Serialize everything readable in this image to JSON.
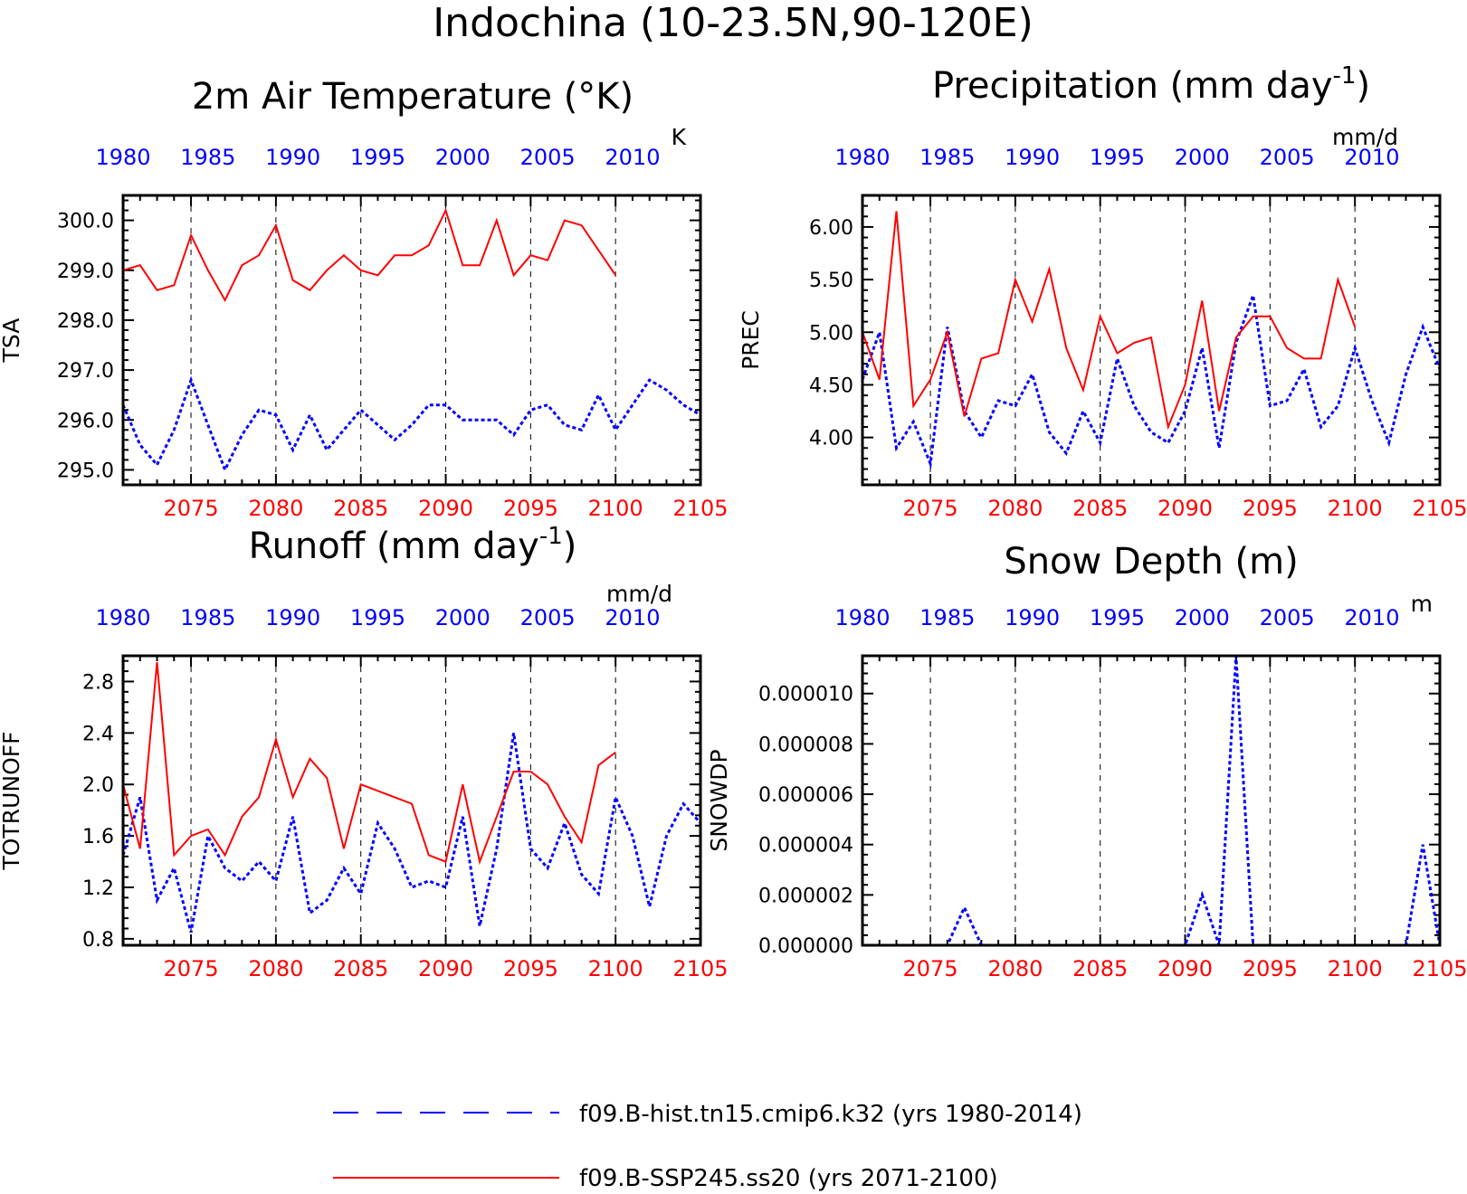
{
  "title": "Indochina (10-23.5N,90-120E)",
  "colors": {
    "hist": "#0000ff",
    "ssp": "#ff0000"
  },
  "legend": {
    "hist": "f09.B-hist.tn15.cmip6.k32 (yrs 1980-2014)",
    "ssp": "f09.B-SSP245.ss20 (yrs 2071-2100)"
  },
  "chart_data": [
    {
      "type": "line",
      "title": "2m Air Temperature (°K)",
      "unit": "K",
      "ylabel": "TSA",
      "yticks": [
        "295.0",
        "296.0",
        "297.0",
        "298.0",
        "299.0",
        "300.0"
      ],
      "ylim": [
        294.7,
        300.5
      ],
      "top_axis": {
        "ticks": [
          "1980",
          "1985",
          "1990",
          "1995",
          "2000",
          "2005",
          "2010"
        ]
      },
      "bottom_axis": {
        "ticks": [
          "2075",
          "2080",
          "2085",
          "2090",
          "2095",
          "2100",
          "2105"
        ]
      },
      "series": [
        {
          "name": "f09.B-hist.tn15.cmip6.k32 (yrs 1980-2014)",
          "style": "dotted",
          "x": [
            1980,
            1981,
            1982,
            1983,
            1984,
            1985,
            1986,
            1987,
            1988,
            1989,
            1990,
            1991,
            1992,
            1993,
            1994,
            1995,
            1996,
            1997,
            1998,
            1999,
            2000,
            2001,
            2002,
            2003,
            2004,
            2005,
            2006,
            2007,
            2008,
            2009,
            2010,
            2011,
            2012,
            2013,
            2014
          ],
          "values": [
            296.3,
            295.5,
            295.1,
            295.8,
            296.8,
            295.9,
            295.0,
            295.7,
            296.2,
            296.1,
            295.4,
            296.1,
            295.4,
            295.8,
            296.2,
            295.9,
            295.6,
            295.9,
            296.3,
            296.3,
            296.0,
            296.0,
            296.0,
            295.7,
            296.2,
            296.3,
            295.9,
            295.8,
            296.5,
            295.8,
            296.3,
            296.8,
            296.6,
            296.3,
            296.1
          ]
        },
        {
          "name": "f09.B-SSP245.ss20 (yrs 2071-2100)",
          "style": "solid",
          "x": [
            2071,
            2072,
            2073,
            2074,
            2075,
            2076,
            2077,
            2078,
            2079,
            2080,
            2081,
            2082,
            2083,
            2084,
            2085,
            2086,
            2087,
            2088,
            2089,
            2090,
            2091,
            2092,
            2093,
            2094,
            2095,
            2096,
            2097,
            2098,
            2099,
            2100
          ],
          "values": [
            299.0,
            299.1,
            298.6,
            298.7,
            299.7,
            299.0,
            298.4,
            299.1,
            299.3,
            299.9,
            298.8,
            298.6,
            299.0,
            299.3,
            299.0,
            298.9,
            299.3,
            299.3,
            299.5,
            300.2,
            299.1,
            299.1,
            300.0,
            298.9,
            299.3,
            299.2,
            300.0,
            299.9,
            299.4,
            298.9
          ]
        }
      ]
    },
    {
      "type": "line",
      "title": "Precipitation (mm day",
      "title_sup": "-1",
      "title_end": ")",
      "unit": "mm/d",
      "ylabel": "PREC",
      "yticks": [
        "4.00",
        "4.50",
        "5.00",
        "5.50",
        "6.00"
      ],
      "ylim": [
        3.55,
        6.3
      ],
      "top_axis": {
        "ticks": [
          "1980",
          "1985",
          "1990",
          "1995",
          "2000",
          "2005",
          "2010"
        ]
      },
      "bottom_axis": {
        "ticks": [
          "2075",
          "2080",
          "2085",
          "2090",
          "2095",
          "2100",
          "2105"
        ]
      },
      "series": [
        {
          "name": "f09.B-hist.tn15.cmip6.k32 (yrs 1980-2014)",
          "style": "dotted",
          "x": [
            1980,
            1981,
            1982,
            1983,
            1984,
            1985,
            1986,
            1987,
            1988,
            1989,
            1990,
            1991,
            1992,
            1993,
            1994,
            1995,
            1996,
            1997,
            1998,
            1999,
            2000,
            2001,
            2002,
            2003,
            2004,
            2005,
            2006,
            2007,
            2008,
            2009,
            2010,
            2011,
            2012,
            2013,
            2014
          ],
          "values": [
            4.55,
            5.0,
            3.9,
            4.15,
            3.75,
            5.05,
            4.25,
            4.0,
            4.35,
            4.3,
            4.6,
            4.05,
            3.85,
            4.25,
            3.95,
            4.75,
            4.3,
            4.05,
            3.95,
            4.25,
            4.85,
            3.9,
            4.9,
            5.35,
            4.3,
            4.35,
            4.65,
            4.1,
            4.3,
            4.85,
            4.35,
            3.95,
            4.6,
            5.05,
            4.65
          ]
        },
        {
          "name": "f09.B-SSP245.ss20 (yrs 2071-2100)",
          "style": "solid",
          "x": [
            2071,
            2072,
            2073,
            2074,
            2075,
            2076,
            2077,
            2078,
            2079,
            2080,
            2081,
            2082,
            2083,
            2084,
            2085,
            2086,
            2087,
            2088,
            2089,
            2090,
            2091,
            2092,
            2093,
            2094,
            2095,
            2096,
            2097,
            2098,
            2099,
            2100
          ],
          "values": [
            5.0,
            4.55,
            6.15,
            4.3,
            4.55,
            5.0,
            4.2,
            4.75,
            4.8,
            5.5,
            5.1,
            5.6,
            4.85,
            4.45,
            5.15,
            4.8,
            4.9,
            4.95,
            4.1,
            4.5,
            5.3,
            4.25,
            4.95,
            5.15,
            5.15,
            4.85,
            4.75,
            4.75,
            5.5,
            5.05
          ]
        }
      ]
    },
    {
      "type": "line",
      "title": "Runoff (mm day",
      "title_sup": "-1",
      "title_end": ")",
      "unit": "mm/d",
      "ylabel": "TOTRUNOFF",
      "yticks": [
        "0.8",
        "1.2",
        "1.6",
        "2.0",
        "2.4",
        "2.8"
      ],
      "ylim": [
        0.75,
        3.0
      ],
      "top_axis": {
        "ticks": [
          "1980",
          "1985",
          "1990",
          "1995",
          "2000",
          "2005",
          "2010"
        ]
      },
      "bottom_axis": {
        "ticks": [
          "2075",
          "2080",
          "2085",
          "2090",
          "2095",
          "2100",
          "2105"
        ]
      },
      "series": [
        {
          "name": "f09.B-hist.tn15.cmip6.k32 (yrs 1980-2014)",
          "style": "dotted",
          "x": [
            1980,
            1981,
            1982,
            1983,
            1984,
            1985,
            1986,
            1987,
            1988,
            1989,
            1990,
            1991,
            1992,
            1993,
            1994,
            1995,
            1996,
            1997,
            1998,
            1999,
            2000,
            2001,
            2002,
            2003,
            2004,
            2005,
            2006,
            2007,
            2008,
            2009,
            2010,
            2011,
            2012,
            2013,
            2014
          ],
          "values": [
            1.45,
            1.9,
            1.1,
            1.35,
            0.85,
            1.6,
            1.35,
            1.25,
            1.4,
            1.25,
            1.75,
            1.0,
            1.1,
            1.35,
            1.15,
            1.7,
            1.5,
            1.2,
            1.25,
            1.2,
            1.75,
            0.9,
            1.5,
            2.4,
            1.5,
            1.35,
            1.7,
            1.3,
            1.15,
            1.9,
            1.6,
            1.05,
            1.6,
            1.85,
            1.7
          ]
        },
        {
          "name": "f09.B-SSP245.ss20 (yrs 2071-2100)",
          "style": "solid",
          "x": [
            2071,
            2072,
            2073,
            2074,
            2075,
            2076,
            2077,
            2078,
            2079,
            2080,
            2081,
            2082,
            2083,
            2084,
            2085,
            2086,
            2087,
            2088,
            2089,
            2090,
            2091,
            2092,
            2093,
            2094,
            2095,
            2096,
            2097,
            2098,
            2099,
            2100
          ],
          "values": [
            2.0,
            1.5,
            2.95,
            1.45,
            1.6,
            1.65,
            1.45,
            1.75,
            1.9,
            2.35,
            1.9,
            2.2,
            2.05,
            1.5,
            2.0,
            1.95,
            1.9,
            1.85,
            1.45,
            1.4,
            2.0,
            1.4,
            1.75,
            2.1,
            2.1,
            2.0,
            1.75,
            1.55,
            2.15,
            2.25
          ]
        }
      ]
    },
    {
      "type": "line",
      "title": "Snow Depth (m)",
      "unit": "m",
      "ylabel": "SNOWDP",
      "yticks": [
        "0.000000",
        "0.000002",
        "0.000004",
        "0.000006",
        "0.000008",
        "0.000010"
      ],
      "ylim": [
        0,
        1.15e-05
      ],
      "top_axis": {
        "ticks": [
          "1980",
          "1985",
          "1990",
          "1995",
          "2000",
          "2005",
          "2010"
        ]
      },
      "bottom_axis": {
        "ticks": [
          "2075",
          "2080",
          "2085",
          "2090",
          "2095",
          "2100",
          "2105"
        ]
      },
      "series": [
        {
          "name": "f09.B-hist.tn15.cmip6.k32 (yrs 1980-2014)",
          "style": "dotted",
          "x": [
            1980,
            1981,
            1982,
            1983,
            1984,
            1985,
            1986,
            1987,
            1988,
            1989,
            1990,
            1991,
            1992,
            1993,
            1994,
            1995,
            1996,
            1997,
            1998,
            1999,
            2000,
            2001,
            2002,
            2003,
            2004,
            2005,
            2006,
            2007,
            2008,
            2009,
            2010,
            2011,
            2012,
            2013,
            2014
          ],
          "values": [
            0,
            0,
            0,
            0,
            0,
            0,
            1.5e-06,
            0,
            0,
            0,
            0,
            0,
            0,
            0,
            0,
            0,
            0,
            0,
            0,
            0,
            2e-06,
            0,
            1.15e-05,
            0,
            0,
            0,
            0,
            0,
            0,
            0,
            0,
            0,
            0,
            4e-06,
            0
          ]
        },
        {
          "name": "f09.B-SSP245.ss20 (yrs 2071-2100)",
          "style": "solid",
          "x": [
            2071,
            2072,
            2073,
            2074,
            2075,
            2076,
            2077,
            2078,
            2079,
            2080,
            2081,
            2082,
            2083,
            2084,
            2085,
            2086,
            2087,
            2088,
            2089,
            2090,
            2091,
            2092,
            2093,
            2094,
            2095,
            2096,
            2097,
            2098,
            2099,
            2100
          ],
          "values": [
            0,
            0,
            0,
            0,
            0,
            0,
            0,
            0,
            0,
            0,
            0,
            0,
            0,
            0,
            0,
            0,
            0,
            0,
            0,
            0,
            0,
            0,
            0,
            0,
            0,
            0,
            0,
            0,
            0,
            0
          ]
        }
      ]
    }
  ]
}
